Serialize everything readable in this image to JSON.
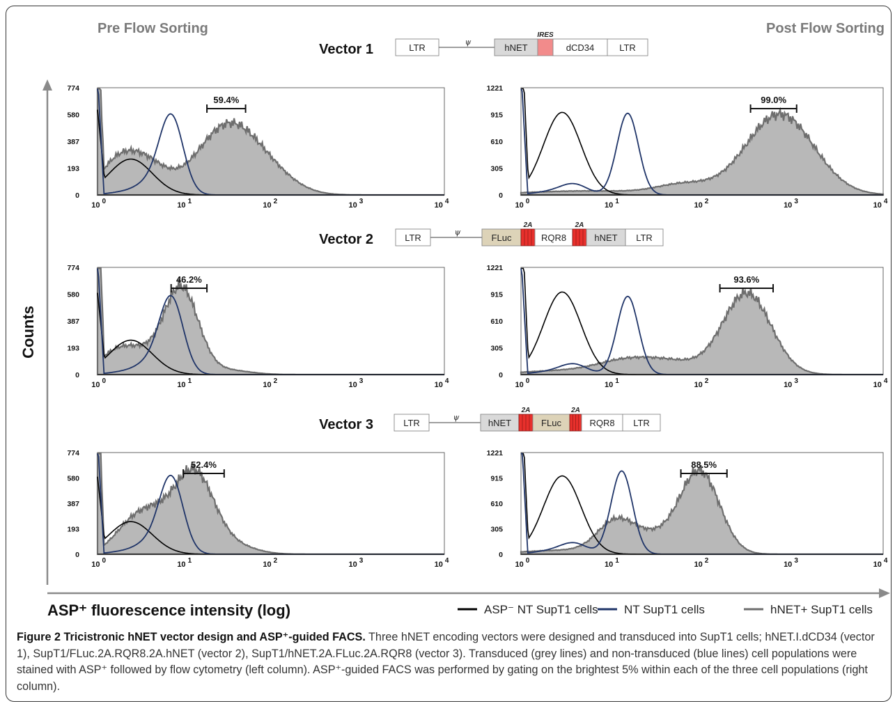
{
  "headers": {
    "pre": "Pre Flow Sorting",
    "post": "Post Flow Sorting"
  },
  "y_axis_label": "Counts",
  "x_axis_label": "ASP⁺ fluorescence intensity (log)",
  "legend": [
    {
      "label": "ASP⁻ NT SupT1 cells",
      "color": "#000000"
    },
    {
      "label": "NT SupT1 cells",
      "color": "#1f3468"
    },
    {
      "label": "hNET+ SupT1 cells",
      "color": "#6e6e6e"
    }
  ],
  "vectors": [
    {
      "title": "Vector 1",
      "elements": [
        {
          "label": "LTR",
          "type": "box"
        },
        {
          "label": "ψ",
          "type": "line"
        },
        {
          "label": "hNET",
          "type": "grey"
        },
        {
          "label": "",
          "type": "ires"
        },
        {
          "label": "dCD34",
          "type": "box"
        },
        {
          "label": "LTR",
          "type": "box"
        }
      ],
      "tag": "IRES"
    },
    {
      "title": "Vector 2",
      "elements": [
        {
          "label": "LTR",
          "type": "box"
        },
        {
          "label": "ψ",
          "type": "line"
        },
        {
          "label": "FLuc",
          "type": "tan"
        },
        {
          "label": "2A",
          "type": "2a"
        },
        {
          "label": "RQR8",
          "type": "box"
        },
        {
          "label": "2A",
          "type": "2a"
        },
        {
          "label": "hNET",
          "type": "grey"
        },
        {
          "label": "LTR",
          "type": "box"
        }
      ]
    },
    {
      "title": "Vector 3",
      "elements": [
        {
          "label": "LTR",
          "type": "box"
        },
        {
          "label": "ψ",
          "type": "line"
        },
        {
          "label": "hNET",
          "type": "grey"
        },
        {
          "label": "2A",
          "type": "2a"
        },
        {
          "label": "FLuc",
          "type": "tan"
        },
        {
          "label": "2A",
          "type": "2a"
        },
        {
          "label": "RQR8",
          "type": "box"
        },
        {
          "label": "LTR",
          "type": "box"
        }
      ]
    }
  ],
  "chart_data": [
    {
      "type": "area",
      "panel": "Vector 1 pre",
      "x_scale": "log",
      "xlim": [
        0.9,
        10000
      ],
      "ylim": [
        0,
        774
      ],
      "x_ticks": [
        "10 0",
        "10 1",
        "10 2",
        "10 3",
        "10 4"
      ],
      "y_ticks": [
        "774",
        "580",
        "387",
        "193",
        "0"
      ],
      "gate": {
        "label": "59.4%",
        "x_range": [
          17,
          48
        ]
      },
      "series": [
        {
          "name": "ASP⁻ NT SupT1 cells",
          "peak_x": 2.2,
          "peak_y": 615
        },
        {
          "name": "NT SupT1 cells",
          "peak_x": 6.5,
          "peak_y": 585
        },
        {
          "name": "hNET+ SupT1 cells",
          "peak_x": 30,
          "peak_y": 520
        }
      ]
    },
    {
      "type": "area",
      "panel": "Vector 1 post",
      "x_scale": "log",
      "xlim": [
        0.9,
        10000
      ],
      "ylim": [
        0,
        1221
      ],
      "x_ticks": [
        "10 0",
        "10 1",
        "10 2",
        "10 3",
        "10 4"
      ],
      "y_ticks": [
        "1221",
        "915",
        "610",
        "305",
        "0"
      ],
      "gate": {
        "label": "99.0%",
        "x_range": [
          330,
          1080
        ]
      },
      "series": [
        {
          "name": "ASP⁻ NT SupT1 cells",
          "peak_x": 2.6,
          "peak_y": 940
        },
        {
          "name": "NT SupT1 cells",
          "peak_x": 14,
          "peak_y": 930
        },
        {
          "name": "hNET+ SupT1 cells",
          "peak_x": 700,
          "peak_y": 920
        }
      ]
    },
    {
      "type": "area",
      "panel": "Vector 2 pre",
      "x_scale": "log",
      "xlim": [
        0.9,
        10000
      ],
      "ylim": [
        0,
        774
      ],
      "x_ticks": [
        "10 0",
        "10 1",
        "10 2",
        "10 3",
        "10 4"
      ],
      "y_ticks": [
        "774",
        "580",
        "387",
        "193",
        "0"
      ],
      "gate": {
        "label": "46.2%",
        "x_range": [
          6.5,
          17
        ]
      },
      "series": [
        {
          "name": "ASP⁻ NT SupT1 cells",
          "peak_x": 2.2,
          "peak_y": 590
        },
        {
          "name": "NT SupT1 cells",
          "peak_x": 6.5,
          "peak_y": 570
        },
        {
          "name": "hNET+ SupT1 cells",
          "peak_x": 8.5,
          "peak_y": 640
        }
      ]
    },
    {
      "type": "area",
      "panel": "Vector 2 post",
      "x_scale": "log",
      "xlim": [
        0.9,
        10000
      ],
      "ylim": [
        0,
        1221
      ],
      "x_ticks": [
        "10 0",
        "10 1",
        "10 2",
        "10 3",
        "10 4"
      ],
      "y_ticks": [
        "1221",
        "915",
        "610",
        "305",
        "0"
      ],
      "gate": {
        "label": "93.6%",
        "x_range": [
          150,
          590
        ]
      },
      "series": [
        {
          "name": "ASP⁻ NT SupT1 cells",
          "peak_x": 2.6,
          "peak_y": 940
        },
        {
          "name": "NT SupT1 cells",
          "peak_x": 14,
          "peak_y": 890
        },
        {
          "name": "hNET+ SupT1 cells",
          "peak_x": 300,
          "peak_y": 930
        }
      ]
    },
    {
      "type": "area",
      "panel": "Vector 3 pre",
      "x_scale": "log",
      "xlim": [
        0.9,
        10000
      ],
      "ylim": [
        0,
        774
      ],
      "x_ticks": [
        "10 0",
        "10 1",
        "10 2",
        "10 3",
        "10 4"
      ],
      "y_ticks": [
        "774",
        "580",
        "387",
        "193",
        "0"
      ],
      "gate": {
        "label": "52.4%",
        "x_range": [
          9,
          27
        ]
      },
      "series": [
        {
          "name": "ASP⁻ NT SupT1 cells",
          "peak_x": 2.2,
          "peak_y": 590
        },
        {
          "name": "NT SupT1 cells",
          "peak_x": 6.5,
          "peak_y": 600
        },
        {
          "name": "hNET+ SupT1 cells",
          "peak_x": 12,
          "peak_y": 650
        }
      ]
    },
    {
      "type": "area",
      "panel": "Vector 3 post",
      "x_scale": "log",
      "xlim": [
        0.9,
        10000
      ],
      "ylim": [
        0,
        1221
      ],
      "x_ticks": [
        "10 0",
        "10 1",
        "10 2",
        "10 3",
        "10 4"
      ],
      "y_ticks": [
        "1221",
        "915",
        "610",
        "305",
        "0"
      ],
      "gate": {
        "label": "88.5%",
        "x_range": [
          55,
          180
        ]
      },
      "series": [
        {
          "name": "ASP⁻ NT SupT1 cells",
          "peak_x": 2.6,
          "peak_y": 940
        },
        {
          "name": "NT SupT1 cells",
          "peak_x": 12,
          "peak_y": 1000
        },
        {
          "name": "hNET+ SupT1 cells",
          "peak_x": 90,
          "peak_y": 1010
        }
      ]
    }
  ],
  "caption": {
    "bold": "Figure 2 Tricistronic hNET vector design and ASP⁺-guided FACS.",
    "text": " Three hNET encoding vectors were designed and transduced into SupT1 cells; hNET.I.dCD34 (vector 1), SupT1/FLuc.2A.RQR8.2A.hNET (vector 2), SupT1/hNET.2A.FLuc.2A.RQR8 (vector 3). Transduced (grey lines) and non-transduced (blue lines) cell populations were stained with ASP⁺ followed by flow cytometry (left column). ASP⁺-guided FACS was performed by gating on the brightest 5% within each of the three cell populations (right column)."
  }
}
